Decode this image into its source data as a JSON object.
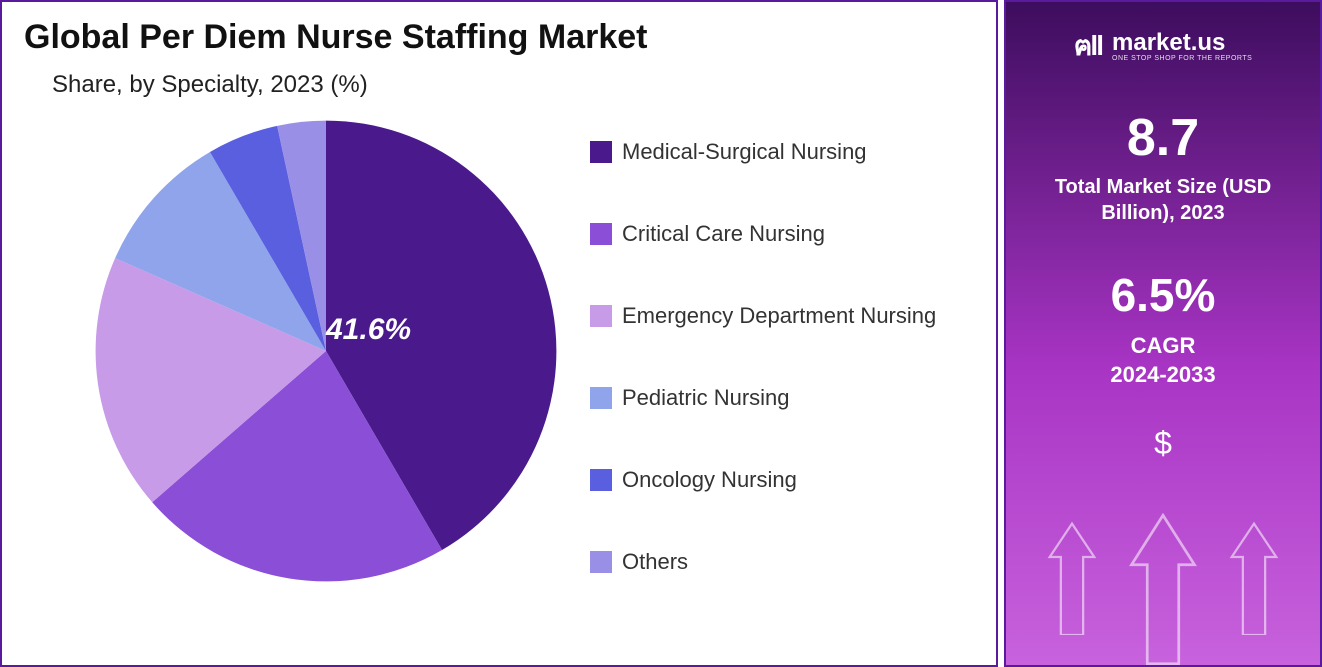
{
  "left": {
    "title": "Global Per Diem Nurse Staffing Market",
    "subtitle": "Share, by Specialty, 2023 (%)",
    "chart": {
      "type": "pie",
      "background_color": "#ffffff",
      "label_on_slice": "41.6%",
      "label_on_slice_fontsize": 30,
      "label_on_slice_color": "#ffffff",
      "slices": [
        {
          "name": "Medical-Surgical Nursing",
          "value": 41.6,
          "color": "#4a1a8c"
        },
        {
          "name": "Critical Care Nursing",
          "value": 22.0,
          "color": "#8a4fd6"
        },
        {
          "name": "Emergency Department Nursing",
          "value": 18.0,
          "color": "#c79be8"
        },
        {
          "name": "Pediatric Nursing",
          "value": 10.0,
          "color": "#8fa4ea"
        },
        {
          "name": "Oncology Nursing",
          "value": 5.0,
          "color": "#5a5fe0"
        },
        {
          "name": "Others",
          "value": 3.4,
          "color": "#9a8fe6"
        }
      ],
      "legend_fontsize": 22,
      "legend_swatch_size": 22
    }
  },
  "right": {
    "brand_name": "market.us",
    "brand_tagline": "ONE STOP SHOP FOR THE REPORTS",
    "market_size_value": "8.7",
    "market_size_label": "Total Market Size (USD Billion), 2023",
    "cagr_value": "6.5%",
    "cagr_label1": "CAGR",
    "cagr_label2": "2024-2033",
    "symbol": "$",
    "bg_gradient_top": "#3d0d5e",
    "bg_gradient_mid": "#a834c4",
    "bg_gradient_bot": "#c862dd",
    "arrow_stroke": "#ffffff"
  },
  "frame_border_color": "#5a1a9e"
}
